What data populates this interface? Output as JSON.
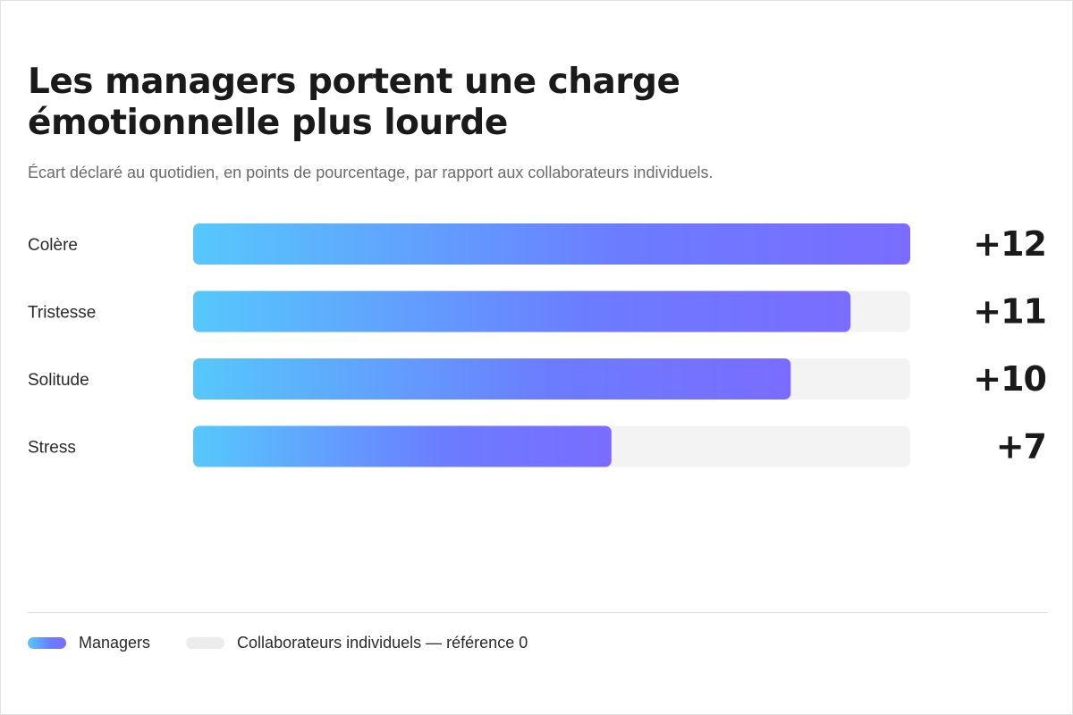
{
  "title": "Les managers portent une charge émotionnelle plus lourde",
  "subtitle": "Écart déclaré au quotidien, en points de pourcentage, par rapport aux collaborateurs individuels.",
  "colors": {
    "gradient_start": "#56c8fb",
    "gradient_mid": "#6b7cff",
    "gradient_end": "#7a6cff",
    "track": "#f3f3f3",
    "text": "#1a1a1a"
  },
  "legend": {
    "managers_label": "Managers",
    "reference_label": "Collaborateurs individuels — référence 0"
  },
  "chart_data": {
    "type": "bar",
    "orientation": "horizontal",
    "title": "Les managers portent une charge émotionnelle plus lourde",
    "subtitle": "Écart déclaré au quotidien, en points de pourcentage, par rapport aux collaborateurs individuels.",
    "categories": [
      "Colère",
      "Tristesse",
      "Solitude",
      "Stress"
    ],
    "series": [
      {
        "name": "Managers",
        "values": [
          12,
          11,
          10,
          7
        ],
        "value_labels": [
          "+12",
          "+11",
          "+10",
          "+7"
        ]
      }
    ],
    "reference": {
      "name": "Collaborateurs individuels — référence",
      "value": 0
    },
    "xlim": [
      0,
      12
    ],
    "grid": false,
    "legend_position": "bottom-left"
  }
}
